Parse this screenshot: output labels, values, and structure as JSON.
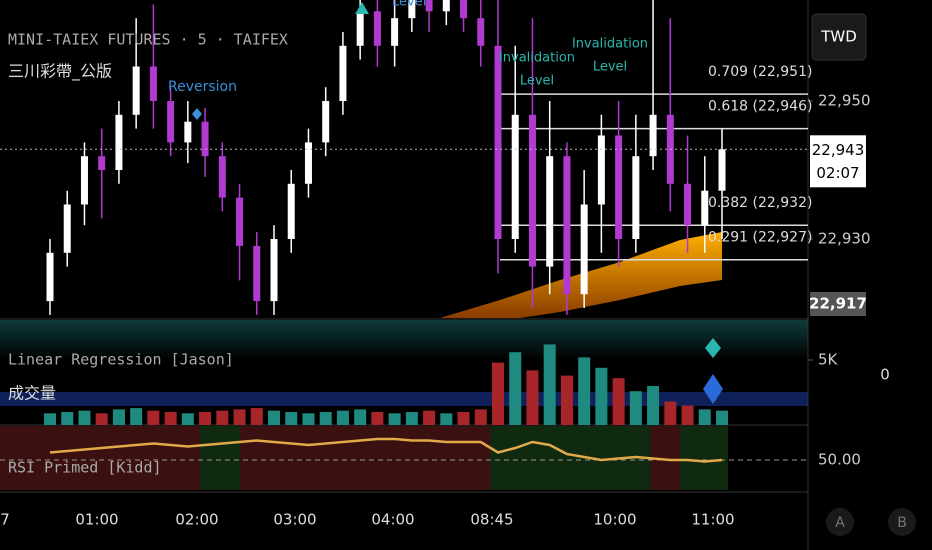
{
  "header": {
    "symbol": "MINI-TAIEX FUTURES · 5 · TAIFEX",
    "indicator": "三川彩帶_公版",
    "currency": "TWD"
  },
  "annotations": {
    "reversion": "Reversion",
    "level_top": "Level",
    "invalidation_1": [
      "Invalidation",
      "Level"
    ],
    "invalidation_2": [
      "Invalidation",
      "Level"
    ]
  },
  "price_axis": {
    "ticks": [
      {
        "value": 22950,
        "label": "22,950"
      },
      {
        "value": 22930,
        "label": "22,930"
      }
    ],
    "last": {
      "value": 22943,
      "label": "22,943"
    },
    "countdown": "02:07",
    "low": {
      "value": 22917,
      "label": "22,917"
    }
  },
  "fib": [
    {
      "price": 22951,
      "label": "0.709 (22,951)"
    },
    {
      "price": 22946,
      "label": "0.618 (22,946)"
    },
    {
      "price": 22932,
      "label": "0.382 (22,932)"
    },
    {
      "price": 22927,
      "label": "0.291 (22,927)"
    }
  ],
  "candles": [
    {
      "o": 22921,
      "h": 22930,
      "l": 22919,
      "c": 22928
    },
    {
      "o": 22928,
      "h": 22937,
      "l": 22926,
      "c": 22935
    },
    {
      "o": 22935,
      "h": 22944,
      "l": 22932,
      "c": 22942
    },
    {
      "o": 22942,
      "h": 22946,
      "l": 22933,
      "c": 22940
    },
    {
      "o": 22940,
      "h": 22950,
      "l": 22938,
      "c": 22948
    },
    {
      "o": 22948,
      "h": 22962,
      "l": 22946,
      "c": 22955
    },
    {
      "o": 22955,
      "h": 22964,
      "l": 22946,
      "c": 22950
    },
    {
      "o": 22950,
      "h": 22952,
      "l": 22942,
      "c": 22944
    },
    {
      "o": 22944,
      "h": 22950,
      "l": 22941,
      "c": 22947
    },
    {
      "o": 22947,
      "h": 22949,
      "l": 22939,
      "c": 22942
    },
    {
      "o": 22942,
      "h": 22944,
      "l": 22934,
      "c": 22936
    },
    {
      "o": 22936,
      "h": 22938,
      "l": 22924,
      "c": 22929
    },
    {
      "o": 22929,
      "h": 22931,
      "l": 22919,
      "c": 22921
    },
    {
      "o": 22921,
      "h": 22932,
      "l": 22919,
      "c": 22930
    },
    {
      "o": 22930,
      "h": 22940,
      "l": 22928,
      "c": 22938
    },
    {
      "o": 22938,
      "h": 22946,
      "l": 22936,
      "c": 22944
    },
    {
      "o": 22944,
      "h": 22952,
      "l": 22942,
      "c": 22950
    },
    {
      "o": 22950,
      "h": 22960,
      "l": 22948,
      "c": 22958
    },
    {
      "o": 22958,
      "h": 22966,
      "l": 22956,
      "c": 22963
    },
    {
      "o": 22963,
      "h": 22966,
      "l": 22955,
      "c": 22958
    },
    {
      "o": 22958,
      "h": 22965,
      "l": 22955,
      "c": 22962
    },
    {
      "o": 22962,
      "h": 22968,
      "l": 22960,
      "c": 22966
    },
    {
      "o": 22966,
      "h": 22968,
      "l": 22960,
      "c": 22963
    },
    {
      "o": 22963,
      "h": 22968,
      "l": 22961,
      "c": 22966
    },
    {
      "o": 22966,
      "h": 22968,
      "l": 22960,
      "c": 22962
    },
    {
      "o": 22962,
      "h": 22965,
      "l": 22955,
      "c": 22958
    },
    {
      "o": 22958,
      "h": 22966,
      "l": 22925,
      "c": 22930
    },
    {
      "o": 22930,
      "h": 22958,
      "l": 22928,
      "c": 22948
    },
    {
      "o": 22948,
      "h": 22962,
      "l": 22920,
      "c": 22926
    },
    {
      "o": 22926,
      "h": 22950,
      "l": 22922,
      "c": 22942
    },
    {
      "o": 22942,
      "h": 22944,
      "l": 22919,
      "c": 22922
    },
    {
      "o": 22922,
      "h": 22940,
      "l": 22920,
      "c": 22935
    },
    {
      "o": 22935,
      "h": 22948,
      "l": 22928,
      "c": 22945
    },
    {
      "o": 22945,
      "h": 22950,
      "l": 22926,
      "c": 22930
    },
    {
      "o": 22930,
      "h": 22948,
      "l": 22928,
      "c": 22942
    },
    {
      "o": 22942,
      "h": 22966,
      "l": 22940,
      "c": 22948
    },
    {
      "o": 22948,
      "h": 22962,
      "l": 22934,
      "c": 22938
    },
    {
      "o": 22938,
      "h": 22945,
      "l": 22928,
      "c": 22932
    },
    {
      "o": 22932,
      "h": 22942,
      "l": 22928,
      "c": 22937
    },
    {
      "o": 22937,
      "h": 22946,
      "l": 22930,
      "c": 22943
    }
  ],
  "volume_pane": {
    "title": "Linear Regression [Jason]",
    "subtitle": "成交量",
    "tick": {
      "value": 5000,
      "label": "5K"
    },
    "right_value": 0,
    "values": [
      900,
      1000,
      1100,
      900,
      1200,
      1300,
      1100,
      1000,
      900,
      1000,
      1100,
      1200,
      1300,
      1100,
      1000,
      900,
      1000,
      1100,
      1200,
      1000,
      900,
      1000,
      1100,
      900,
      1000,
      1200,
      4800,
      5600,
      4200,
      6200,
      3800,
      5200,
      4400,
      3600,
      2600,
      3000,
      1800,
      1500,
      1200,
      1100
    ]
  },
  "rsi_pane": {
    "title": "RSI Primed [Kidd]",
    "tick": {
      "value": 50,
      "label": "50.00"
    },
    "values": [
      55,
      56,
      57,
      58,
      59,
      60,
      61,
      60,
      59,
      60,
      61,
      62,
      63,
      62,
      61,
      60,
      61,
      62,
      63,
      64,
      64,
      63,
      63,
      62,
      62,
      62,
      55,
      58,
      62,
      60,
      54,
      52,
      50,
      51,
      52,
      51,
      50,
      50,
      49,
      50
    ]
  },
  "time_axis": [
    "7",
    "01:00",
    "02:00",
    "03:00",
    "04:00",
    "08:45",
    "10:00",
    "11:00"
  ],
  "buttons": [
    "A",
    "B"
  ]
}
